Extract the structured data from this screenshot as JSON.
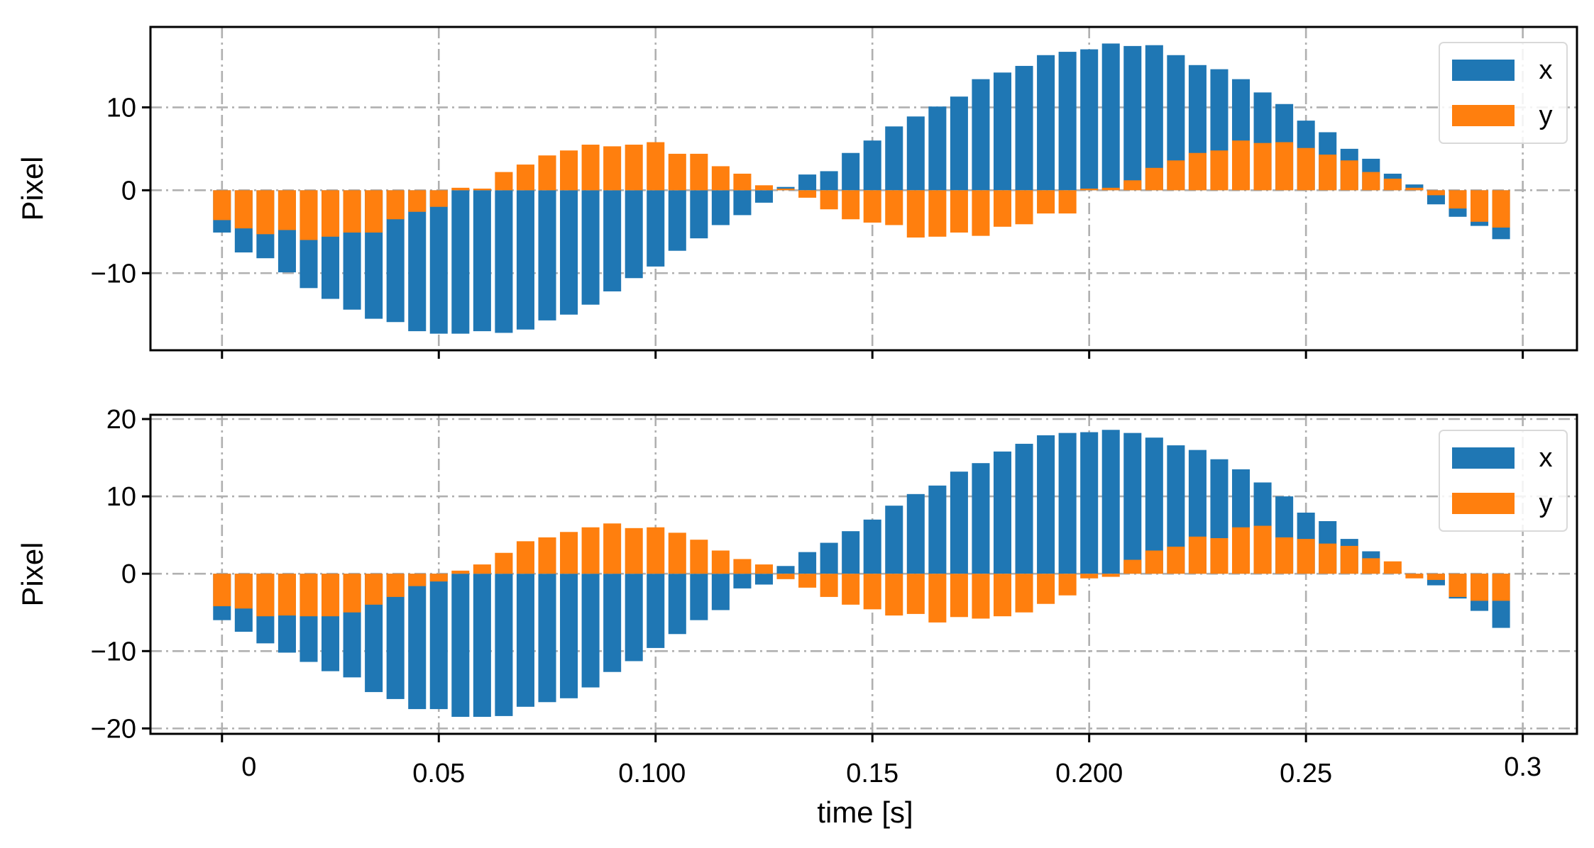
{
  "chart_data": [
    {
      "type": "bar",
      "panel": "top",
      "ylabel": "Pixel",
      "xlim": [
        -0.0165,
        0.3125
      ],
      "ylim": [
        -19.3,
        19.7
      ],
      "xticks": [
        0,
        0.05,
        0.1,
        0.15,
        0.2,
        0.25,
        0.3
      ],
      "yticks": [
        {
          "value": 10,
          "label": "10"
        },
        {
          "value": 0,
          "label": "0"
        },
        {
          "value": -10,
          "label": "−10"
        }
      ],
      "grid": true,
      "legend": {
        "position": "top-right",
        "entries": [
          "x",
          "y"
        ]
      },
      "x": [
        0.0,
        0.005,
        0.01,
        0.015,
        0.02,
        0.025,
        0.03,
        0.035,
        0.04,
        0.045,
        0.05,
        0.055,
        0.06,
        0.065,
        0.07,
        0.075,
        0.08,
        0.085,
        0.09,
        0.095,
        0.1,
        0.105,
        0.11,
        0.115,
        0.12,
        0.125,
        0.13,
        0.135,
        0.14,
        0.145,
        0.15,
        0.155,
        0.16,
        0.165,
        0.17,
        0.175,
        0.18,
        0.185,
        0.19,
        0.195,
        0.2,
        0.205,
        0.21,
        0.215,
        0.22,
        0.225,
        0.23,
        0.235,
        0.24,
        0.245,
        0.25,
        0.255,
        0.26,
        0.265,
        0.27,
        0.275,
        0.28,
        0.285,
        0.29,
        0.295
      ],
      "series": [
        {
          "name": "x",
          "color": "#1f77b4",
          "values": [
            -5.1,
            -7.5,
            -8.2,
            -9.9,
            -11.8,
            -13.1,
            -14.4,
            -15.5,
            -15.9,
            -17.0,
            -17.3,
            -17.3,
            -17.0,
            -17.2,
            -16.8,
            -15.7,
            -15.0,
            -13.8,
            -12.2,
            -10.6,
            -9.2,
            -7.3,
            -5.8,
            -4.2,
            -3.0,
            -1.5,
            0.4,
            1.9,
            2.3,
            4.5,
            6.0,
            7.7,
            8.9,
            10.1,
            11.3,
            13.4,
            14.2,
            15.0,
            16.3,
            16.7,
            17.0,
            17.7,
            17.4,
            17.5,
            16.3,
            15.1,
            14.6,
            13.4,
            11.8,
            10.4,
            8.4,
            7.0,
            5.0,
            3.8,
            2.0,
            0.7,
            -1.7,
            -3.2,
            -4.3,
            -5.9
          ]
        },
        {
          "name": "y",
          "color": "#ff7f0e",
          "values": [
            -3.6,
            -4.6,
            -5.3,
            -4.8,
            -6.0,
            -5.6,
            -5.1,
            -5.1,
            -3.5,
            -2.6,
            -2.0,
            0.3,
            0.2,
            2.2,
            3.1,
            4.2,
            4.8,
            5.5,
            5.3,
            5.5,
            5.8,
            4.4,
            4.4,
            2.9,
            2.0,
            0.6,
            0.2,
            -0.9,
            -2.3,
            -3.5,
            -3.9,
            -4.2,
            -5.7,
            -5.6,
            -5.1,
            -5.5,
            -4.4,
            -4.1,
            -2.8,
            -2.8,
            0.2,
            0.3,
            1.2,
            2.7,
            3.6,
            4.5,
            4.8,
            6.0,
            5.7,
            5.8,
            5.1,
            4.3,
            3.6,
            2.2,
            1.4,
            0.3,
            -0.6,
            -2.2,
            -3.8,
            -4.5
          ]
        }
      ]
    },
    {
      "type": "bar",
      "panel": "bottom",
      "ylabel": "Pixel",
      "xlabel": "time [s]",
      "xlim": [
        -0.0165,
        0.3125
      ],
      "ylim": [
        -20.7,
        20.55
      ],
      "xticks": [
        0,
        0.05,
        0.1,
        0.15,
        0.2,
        0.25,
        0.3
      ],
      "xtick_labels": [
        "0",
        "0.05",
        "0.100",
        "0.15",
        "0.200",
        "0.25",
        "0.3"
      ],
      "yticks": [
        {
          "value": 20,
          "label": "20"
        },
        {
          "value": 10,
          "label": "10"
        },
        {
          "value": 0,
          "label": "0"
        },
        {
          "value": -10,
          "label": "−10"
        },
        {
          "value": -20,
          "label": "−20"
        }
      ],
      "grid": true,
      "legend": {
        "position": "top-right",
        "entries": [
          "x",
          "y"
        ]
      },
      "x": [
        0.0,
        0.005,
        0.01,
        0.015,
        0.02,
        0.025,
        0.03,
        0.035,
        0.04,
        0.045,
        0.05,
        0.055,
        0.06,
        0.065,
        0.07,
        0.075,
        0.08,
        0.085,
        0.09,
        0.095,
        0.1,
        0.105,
        0.11,
        0.115,
        0.12,
        0.125,
        0.13,
        0.135,
        0.14,
        0.145,
        0.15,
        0.155,
        0.16,
        0.165,
        0.17,
        0.175,
        0.18,
        0.185,
        0.19,
        0.195,
        0.2,
        0.205,
        0.21,
        0.215,
        0.22,
        0.225,
        0.23,
        0.235,
        0.24,
        0.245,
        0.25,
        0.255,
        0.26,
        0.265,
        0.27,
        0.275,
        0.28,
        0.285,
        0.29,
        0.295
      ],
      "series": [
        {
          "name": "x",
          "color": "#1f77b4",
          "values": [
            -6.0,
            -7.5,
            -9.0,
            -10.2,
            -11.4,
            -12.6,
            -13.4,
            -15.3,
            -16.2,
            -17.5,
            -17.5,
            -18.5,
            -18.5,
            -18.4,
            -17.2,
            -16.6,
            -16.1,
            -14.7,
            -12.7,
            -11.3,
            -9.6,
            -7.8,
            -6.0,
            -4.7,
            -1.9,
            -1.4,
            1.0,
            2.8,
            4.0,
            5.5,
            7.0,
            8.8,
            10.3,
            11.4,
            13.2,
            14.3,
            15.8,
            16.8,
            17.9,
            18.2,
            18.3,
            18.6,
            18.2,
            17.6,
            16.6,
            16.0,
            14.8,
            13.5,
            11.8,
            10.0,
            7.9,
            6.8,
            4.5,
            2.9,
            0.2,
            -0.1,
            -1.5,
            -3.2,
            -4.8,
            -7.0
          ]
        },
        {
          "name": "y",
          "color": "#ff7f0e",
          "values": [
            -4.2,
            -4.5,
            -5.5,
            -5.4,
            -5.5,
            -5.5,
            -5.0,
            -4.0,
            -3.0,
            -1.6,
            -1.0,
            0.4,
            1.2,
            2.7,
            4.2,
            4.7,
            5.4,
            6.0,
            6.5,
            5.9,
            6.0,
            5.3,
            4.4,
            3.0,
            1.9,
            1.2,
            -0.7,
            -1.8,
            -3.0,
            -4.0,
            -4.6,
            -5.4,
            -5.2,
            -6.3,
            -5.6,
            -5.8,
            -5.5,
            -5.0,
            -3.9,
            -2.8,
            -0.6,
            -0.4,
            1.8,
            3.0,
            3.5,
            4.8,
            4.6,
            6.0,
            6.2,
            4.7,
            4.5,
            3.9,
            3.6,
            2.0,
            1.6,
            -0.6,
            -0.8,
            -3.0,
            -3.5,
            -3.5
          ]
        }
      ]
    }
  ]
}
